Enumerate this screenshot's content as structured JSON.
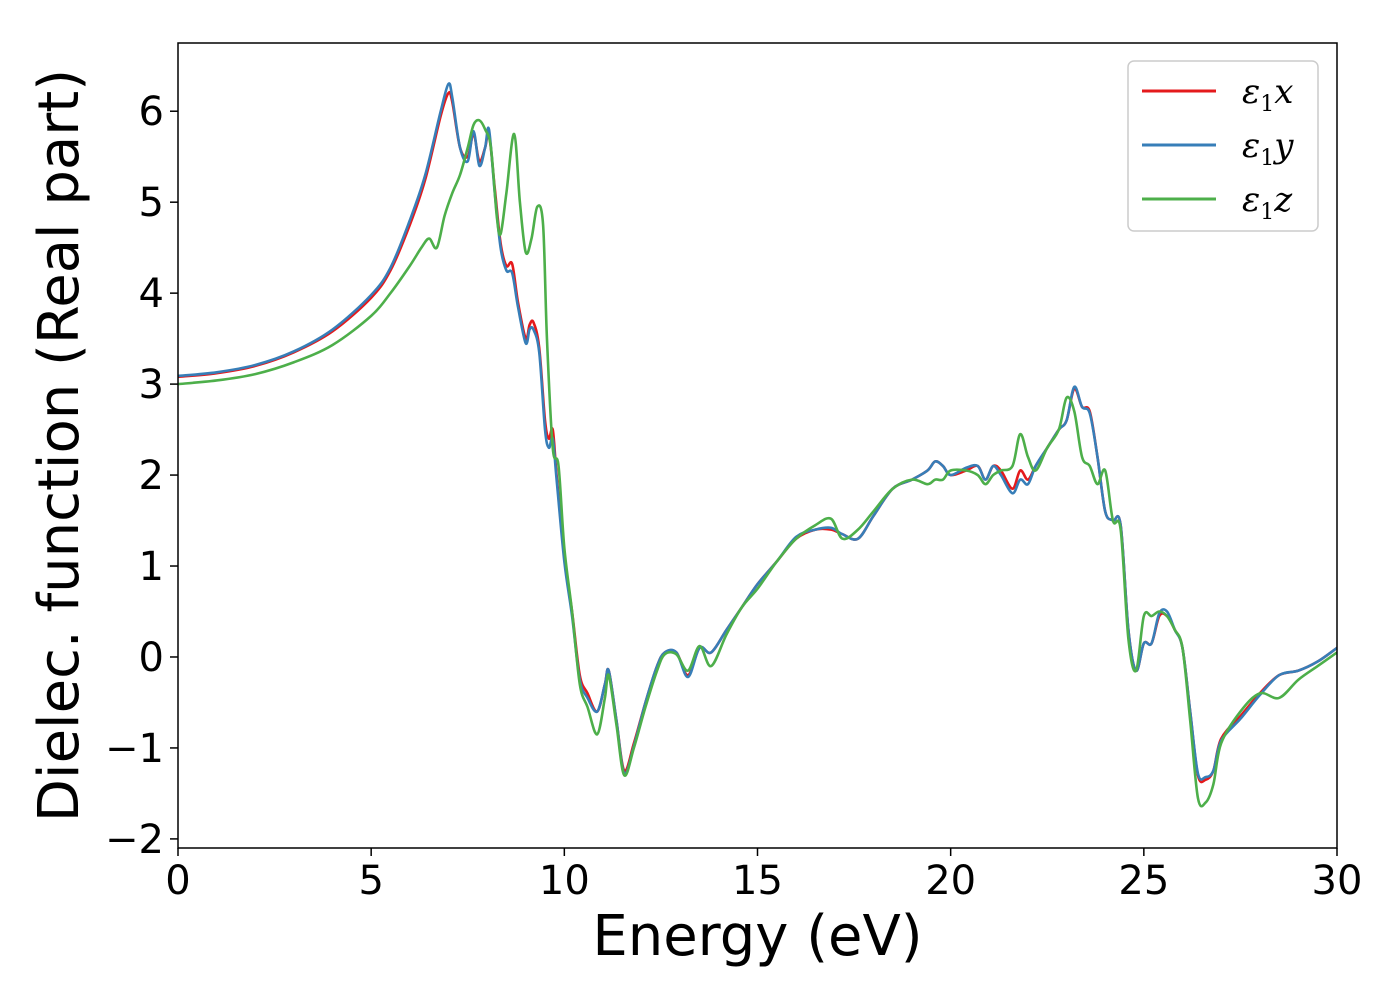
{
  "chart_data": {
    "type": "line",
    "title": "",
    "xlabel": "Energy (eV)",
    "ylabel": "Dielec. function (Real part)",
    "xlim": [
      0,
      30
    ],
    "ylim": [
      -2.1,
      6.75
    ],
    "xticks": [
      0,
      5,
      10,
      15,
      20,
      25,
      30
    ],
    "yticks": [
      -2,
      -1,
      0,
      1,
      2,
      3,
      4,
      5,
      6
    ],
    "grid": false,
    "legend_position": "top-right",
    "series": [
      {
        "name": "ε₁x",
        "legend_base": "ε",
        "legend_sub": "1",
        "legend_var": "x",
        "color": "#e41a1c",
        "x": [
          0,
          1,
          2,
          3,
          4,
          5,
          5.5,
          6,
          6.4,
          6.8,
          7.0,
          7.1,
          7.3,
          7.5,
          7.65,
          7.8,
          7.95,
          8.05,
          8.2,
          8.35,
          8.5,
          8.65,
          8.8,
          9.0,
          9.1,
          9.2,
          9.35,
          9.5,
          9.6,
          9.7,
          9.8,
          10.0,
          10.2,
          10.4,
          10.6,
          10.85,
          11.05,
          11.15,
          11.35,
          11.55,
          11.8,
          12.1,
          12.4,
          12.6,
          12.9,
          13.2,
          13.5,
          13.8,
          14.2,
          14.6,
          15.0,
          15.5,
          16.0,
          16.5,
          16.9,
          17.2,
          17.6,
          18.0,
          18.5,
          19.0,
          19.4,
          19.6,
          19.8,
          20.0,
          20.4,
          20.7,
          20.9,
          21.1,
          21.3,
          21.6,
          21.8,
          22.0,
          22.2,
          22.5,
          22.8,
          23.0,
          23.2,
          23.4,
          23.6,
          23.8,
          24.0,
          24.2,
          24.4,
          24.6,
          24.8,
          25.0,
          25.2,
          25.4,
          25.6,
          25.8,
          26.0,
          26.2,
          26.4,
          26.6,
          26.8,
          27.0,
          27.5,
          28.0,
          28.5,
          29.0,
          29.5,
          30.0
        ],
        "y": [
          3.08,
          3.12,
          3.2,
          3.35,
          3.58,
          3.95,
          4.25,
          4.75,
          5.25,
          5.95,
          6.2,
          6.1,
          5.6,
          5.5,
          5.75,
          5.45,
          5.6,
          5.75,
          5.15,
          4.55,
          4.3,
          4.32,
          3.9,
          3.5,
          3.65,
          3.68,
          3.4,
          2.6,
          2.4,
          2.5,
          2.0,
          1.1,
          0.5,
          -0.2,
          -0.4,
          -0.6,
          -0.3,
          -0.15,
          -0.7,
          -1.25,
          -0.95,
          -0.5,
          -0.1,
          0.05,
          0.05,
          -0.2,
          0.1,
          0.05,
          0.3,
          0.55,
          0.8,
          1.05,
          1.3,
          1.4,
          1.4,
          1.35,
          1.3,
          1.55,
          1.85,
          1.95,
          2.05,
          2.15,
          2.1,
          2.0,
          2.05,
          2.1,
          1.95,
          2.1,
          2.05,
          1.85,
          2.05,
          1.95,
          2.1,
          2.3,
          2.5,
          2.6,
          2.95,
          2.75,
          2.7,
          2.2,
          1.6,
          1.5,
          1.45,
          0.3,
          -0.15,
          0.15,
          0.15,
          0.45,
          0.45,
          0.3,
          0.1,
          -0.6,
          -1.3,
          -1.35,
          -1.25,
          -0.9,
          -0.65,
          -0.4,
          -0.2,
          -0.15,
          -0.05,
          0.1
        ]
      },
      {
        "name": "ε₁y",
        "legend_base": "ε",
        "legend_sub": "1",
        "legend_var": "y",
        "color": "#377eb8",
        "x": [
          0,
          1,
          2,
          3,
          4,
          5,
          5.5,
          6,
          6.4,
          6.8,
          7.0,
          7.1,
          7.3,
          7.5,
          7.65,
          7.8,
          7.95,
          8.05,
          8.2,
          8.35,
          8.5,
          8.65,
          8.8,
          9.0,
          9.1,
          9.2,
          9.35,
          9.5,
          9.6,
          9.7,
          9.8,
          10.0,
          10.2,
          10.4,
          10.6,
          10.85,
          11.05,
          11.15,
          11.35,
          11.55,
          11.8,
          12.1,
          12.4,
          12.6,
          12.9,
          13.2,
          13.5,
          13.8,
          14.2,
          14.6,
          15.0,
          15.5,
          16.0,
          16.5,
          16.9,
          17.2,
          17.6,
          18.0,
          18.5,
          19.0,
          19.4,
          19.6,
          19.8,
          20.0,
          20.4,
          20.7,
          20.9,
          21.1,
          21.3,
          21.6,
          21.8,
          22.0,
          22.2,
          22.5,
          22.8,
          23.0,
          23.2,
          23.4,
          23.6,
          23.8,
          24.0,
          24.2,
          24.4,
          24.6,
          24.8,
          25.0,
          25.2,
          25.4,
          25.6,
          25.8,
          26.0,
          26.2,
          26.4,
          26.6,
          26.8,
          27.0,
          27.5,
          28.0,
          28.5,
          29.0,
          29.5,
          30.0
        ],
        "y": [
          3.09,
          3.13,
          3.21,
          3.36,
          3.6,
          3.98,
          4.28,
          4.8,
          5.3,
          6.0,
          6.3,
          6.15,
          5.6,
          5.45,
          5.78,
          5.4,
          5.6,
          5.8,
          5.1,
          4.5,
          4.25,
          4.22,
          3.85,
          3.45,
          3.6,
          3.6,
          3.35,
          2.5,
          2.3,
          2.4,
          1.95,
          1.05,
          0.45,
          -0.25,
          -0.45,
          -0.6,
          -0.3,
          -0.15,
          -0.7,
          -1.28,
          -0.98,
          -0.5,
          -0.1,
          0.05,
          0.05,
          -0.22,
          0.1,
          0.05,
          0.3,
          0.55,
          0.8,
          1.05,
          1.32,
          1.4,
          1.42,
          1.35,
          1.3,
          1.55,
          1.85,
          1.95,
          2.05,
          2.15,
          2.1,
          2.0,
          2.08,
          2.1,
          1.95,
          2.1,
          2.0,
          1.8,
          1.95,
          1.9,
          2.1,
          2.3,
          2.5,
          2.6,
          2.97,
          2.75,
          2.68,
          2.2,
          1.6,
          1.5,
          1.45,
          0.3,
          -0.15,
          0.15,
          0.15,
          0.48,
          0.5,
          0.3,
          0.1,
          -0.6,
          -1.28,
          -1.32,
          -1.25,
          -0.92,
          -0.68,
          -0.42,
          -0.2,
          -0.15,
          -0.05,
          0.1
        ]
      },
      {
        "name": "ε₁z",
        "legend_base": "ε",
        "legend_sub": "1",
        "legend_var": "z",
        "color": "#4daf4a",
        "x": [
          0,
          1,
          2,
          3,
          4,
          5,
          5.5,
          6,
          6.3,
          6.5,
          6.7,
          6.9,
          7.1,
          7.3,
          7.5,
          7.65,
          7.8,
          7.95,
          8.1,
          8.25,
          8.35,
          8.5,
          8.7,
          8.85,
          9.0,
          9.15,
          9.3,
          9.45,
          9.55,
          9.7,
          9.85,
          10.0,
          10.2,
          10.4,
          10.6,
          10.85,
          11.05,
          11.15,
          11.35,
          11.55,
          11.8,
          12.1,
          12.4,
          12.6,
          12.9,
          13.2,
          13.5,
          13.8,
          14.2,
          14.6,
          15.0,
          15.5,
          16.0,
          16.5,
          16.9,
          17.2,
          17.6,
          18.0,
          18.5,
          19.0,
          19.4,
          19.6,
          19.8,
          20.0,
          20.4,
          20.7,
          20.9,
          21.1,
          21.3,
          21.6,
          21.8,
          22.0,
          22.2,
          22.5,
          22.8,
          23.0,
          23.2,
          23.4,
          23.6,
          23.8,
          24.0,
          24.2,
          24.4,
          24.6,
          24.8,
          25.0,
          25.2,
          25.4,
          25.6,
          25.8,
          26.0,
          26.2,
          26.4,
          26.6,
          26.8,
          27.0,
          27.5,
          28.0,
          28.5,
          29.0,
          29.5,
          30.0
        ],
        "y": [
          3.0,
          3.04,
          3.11,
          3.24,
          3.43,
          3.75,
          4.0,
          4.3,
          4.5,
          4.6,
          4.5,
          4.85,
          5.1,
          5.3,
          5.6,
          5.85,
          5.9,
          5.8,
          5.6,
          4.85,
          4.65,
          5.1,
          5.75,
          5.0,
          4.45,
          4.6,
          4.95,
          4.75,
          3.5,
          2.3,
          2.1,
          1.2,
          0.5,
          -0.3,
          -0.55,
          -0.85,
          -0.45,
          -0.2,
          -0.75,
          -1.3,
          -1.0,
          -0.55,
          -0.15,
          0.03,
          0.03,
          -0.15,
          0.12,
          -0.1,
          0.25,
          0.55,
          0.75,
          1.05,
          1.3,
          1.45,
          1.52,
          1.3,
          1.4,
          1.6,
          1.85,
          1.95,
          1.9,
          1.95,
          1.95,
          2.05,
          2.05,
          2.0,
          1.9,
          2.0,
          2.05,
          2.1,
          2.45,
          2.2,
          2.05,
          2.3,
          2.5,
          2.85,
          2.7,
          2.2,
          2.1,
          1.9,
          2.05,
          1.5,
          1.4,
          0.2,
          -0.15,
          0.45,
          0.45,
          0.5,
          0.45,
          0.3,
          0.1,
          -0.7,
          -1.55,
          -1.6,
          -1.4,
          -0.95,
          -0.6,
          -0.4,
          -0.45,
          -0.25,
          -0.1,
          0.05
        ]
      }
    ]
  }
}
